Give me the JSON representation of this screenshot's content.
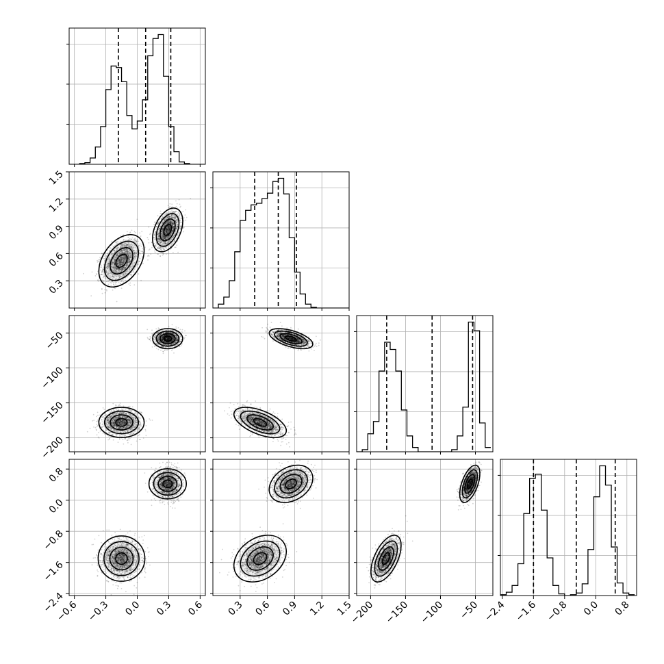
{
  "chart_data": {
    "type": "corner",
    "n_params": 4,
    "params": [
      {
        "index": 0,
        "range": [
          -0.65,
          0.65
        ],
        "ticks": [
          -0.6,
          -0.3,
          0.0,
          0.3,
          0.6
        ],
        "tick_labels": [
          "−0.6",
          "−0.3",
          "0.0",
          "0.3",
          "0.6"
        ],
        "quantiles": [
          -0.18,
          0.08,
          0.32
        ]
      },
      {
        "index": 1,
        "range": [
          0.0,
          1.5
        ],
        "ticks": [
          0.3,
          0.6,
          0.9,
          1.2,
          1.5
        ],
        "tick_labels": [
          "0.3",
          "0.6",
          "0.9",
          "1.2",
          "1.5"
        ],
        "quantiles": [
          0.46,
          0.72,
          0.92
        ]
      },
      {
        "index": 2,
        "range": [
          -220,
          -25
        ],
        "ticks": [
          -200,
          -150,
          -100,
          -50
        ],
        "tick_labels": [
          "−200",
          "−150",
          "−100",
          "−50"
        ],
        "quantiles": [
          -177,
          -112,
          -54
        ]
      },
      {
        "index": 3,
        "range": [
          -2.45,
          1.05
        ],
        "ticks": [
          -2.4,
          -1.6,
          -0.8,
          0.0,
          0.8
        ],
        "tick_labels": [
          "−2.4",
          "−1.6",
          "−0.8",
          "0.0",
          "0.8"
        ],
        "quantiles": [
          -1.6,
          -0.5,
          0.5
        ]
      }
    ],
    "histograms": [
      {
        "param": 0,
        "edges": [
          -0.65,
          -0.6,
          -0.55,
          -0.5,
          -0.45,
          -0.4,
          -0.35,
          -0.3,
          -0.25,
          -0.2,
          -0.15,
          -0.1,
          -0.05,
          0.0,
          0.05,
          0.1,
          0.15,
          0.2,
          0.25,
          0.3,
          0.35,
          0.4,
          0.45,
          0.5,
          0.55,
          0.6,
          0.65
        ],
        "counts": [
          0,
          0,
          1,
          2,
          8,
          22,
          48,
          95,
          125,
          123,
          105,
          62,
          45,
          55,
          82,
          138,
          160,
          165,
          112,
          48,
          16,
          3,
          1,
          0,
          0,
          0
        ]
      },
      {
        "param": 1,
        "edges": [
          0.0,
          0.06,
          0.12,
          0.18,
          0.24,
          0.3,
          0.36,
          0.42,
          0.48,
          0.54,
          0.6,
          0.66,
          0.72,
          0.78,
          0.84,
          0.9,
          0.96,
          1.02,
          1.08,
          1.14,
          1.2,
          1.26,
          1.32,
          1.38,
          1.44,
          1.5
        ],
        "counts": [
          0,
          5,
          14,
          35,
          72,
          112,
          125,
          132,
          134,
          140,
          147,
          162,
          166,
          146,
          90,
          46,
          18,
          5,
          1,
          0,
          0,
          0,
          0,
          0,
          0
        ]
      },
      {
        "param": 2,
        "edges": [
          -220,
          -212,
          -204,
          -196,
          -188,
          -180,
          -172,
          -164,
          -156,
          -148,
          -140,
          -132,
          -124,
          -116,
          -108,
          -100,
          -92,
          -84,
          -76,
          -68,
          -60,
          -52,
          -44,
          -36,
          -28
        ],
        "counts": [
          0,
          3,
          25,
          42,
          112,
          152,
          142,
          112,
          58,
          22,
          6,
          0,
          0,
          0,
          0,
          0,
          0,
          3,
          22,
          62,
          180,
          168,
          40,
          6
        ]
      },
      {
        "param": 3,
        "edges": [
          -2.45,
          -2.3,
          -2.15,
          -2.0,
          -1.85,
          -1.7,
          -1.55,
          -1.4,
          -1.25,
          -1.1,
          -0.95,
          -0.8,
          -0.65,
          -0.5,
          -0.35,
          -0.2,
          -0.05,
          0.1,
          0.25,
          0.4,
          0.55,
          0.7,
          0.85,
          1.0
        ],
        "counts": [
          1,
          4,
          12,
          38,
          98,
          140,
          145,
          102,
          45,
          12,
          2,
          0,
          1,
          3,
          14,
          55,
          118,
          155,
          132,
          58,
          15,
          3,
          1
        ]
      }
    ],
    "modes": [
      {
        "mean": [
          -0.15,
          0.52,
          -178,
          -1.5
        ],
        "sd": [
          0.09,
          0.12,
          9,
          0.25
        ]
      },
      {
        "mean": [
          0.29,
          0.86,
          -58,
          0.42
        ],
        "sd": [
          0.06,
          0.1,
          6,
          0.2
        ]
      }
    ],
    "correlations": {
      "0-1": 0.4,
      "1-2": -0.55,
      "1-3": 0.3,
      "2-3": 0.55
    },
    "grid": true
  }
}
